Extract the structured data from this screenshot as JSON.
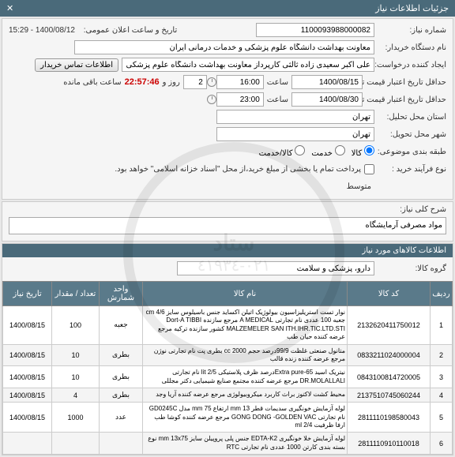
{
  "header": {
    "title": "جزئیات اطلاعات نیاز",
    "close": "✕"
  },
  "info": {
    "need_no_label": "شماره نیاز:",
    "need_no": "1100093988000082",
    "announce_label": "تاریخ و ساعت اعلان عمومی:",
    "announce_value": "1400/08/12 - 15:29",
    "buyer_label": "نام دستگاه خریدار:",
    "buyer_value": "معاونت بهداشت دانشگاه علوم پزشکی و خدمات درمانی ایران",
    "creator_label": "ایجاد کننده درخواست:",
    "creator_value": "علی اکبر سعیدی زاده ثالثی کارپرداز معاونت بهداشت دانشگاه علوم پزشکی و",
    "contact_btn": "اطلاعات تماس خریدار",
    "deadline_label": "حداقل تاریخ اعتبار قیمت تا تاریخ:",
    "deadline_date": "1400/08/15",
    "deadline_time_label": "ساعت",
    "deadline_time": "16:00",
    "day_label": "روز و",
    "day_value": "2",
    "countdown": "22:57:46",
    "remain_label": "ساعت باقی مانده",
    "valid_label": "حداقل تاریخ اعتبار قیمت تا تاریخ:",
    "valid_date": "1400/08/30",
    "valid_time_label": "ساعت",
    "valid_time": "23:00",
    "province_label": "استان محل تحلیل:",
    "province_value": "تهران",
    "city_label": "شهر محل تحویل:",
    "city_value": "تهران",
    "category_label": "طبقه بندی موضوعی:",
    "radio_goods": "کالا",
    "radio_service": "خدمت",
    "radio_both": "کالا/خدمت",
    "purchase_label": "نوع فرآیند خرید :",
    "purchase_chk": "پرداخت تمام یا بخشی از مبلغ خرید،از محل \"اسناد خزانه اسلامی\" خواهد بود.",
    "medium": "متوسط"
  },
  "need_desc": {
    "label": "شرح کلی نیاز:",
    "value": "مواد مصرفی آرمایشگاه"
  },
  "goods": {
    "header": "اطلاعات کالاهای مورد نیاز",
    "group_label": "گروه کالا:",
    "group_value": "دارو، پزشکی و سلامت"
  },
  "table": {
    "columns": [
      "ردیف",
      "کد کالا",
      "نام کالا",
      "واحد شمارش",
      "تعداد / مقدار",
      "تاریخ نیاز"
    ],
    "col_widths": [
      "28px",
      "105px",
      "auto",
      "55px",
      "60px",
      "62px"
    ],
    "rows": [
      {
        "idx": "1",
        "code": "2132620411750012",
        "name": "نوار تست استریلیزاسیون بیولوژیک اتیلن اکساید جنس باسیلوس سایز cm 4/6 جعبه 100 عددی نام تجارتی A MEDICAL مرجع سازنده Dort-A TIBBI MALZEMELER SAN ITH.IHR.TIC.LTD.STI کشور سازنده ترکیه مرجع عرضه کننده حیان طب",
        "unit": "جعبه",
        "qty": "100",
        "date": "1400/08/15"
      },
      {
        "idx": "2",
        "code": "0833211024000004",
        "name": "متانول صنعتی غلظت 99/9درصد حجم 2000 cc بطری پت نام تجارتی نوژن مرجع عرضه کننده زنده قالب",
        "unit": "بطری",
        "qty": "10",
        "date": "1400/08/15"
      },
      {
        "idx": "3",
        "code": "0843100814720005",
        "name": "نیتریک اسید Extra pure-65درصد ظرف پلاستیکی lit 2/5 نام تجارتی DR.MOLALLALI مرجع عرضه کننده مجتمع صنایع شیمیایی دکتر مجللی",
        "unit": "بطری",
        "qty": "10",
        "date": "1400/08/15"
      },
      {
        "idx": "4",
        "code": "2137510745060244",
        "name": "محیط کشت لاکتوز براث کاربرد میکروبیولوژی مرجع عرضه کننده آریا وجد",
        "unit": "بطری",
        "qty": "4",
        "date": "1400/08/15"
      },
      {
        "idx": "5",
        "code": "2811110198580043",
        "name": "لوله آزمایش خونگیری سدیمات قطر mm 13 ارتفاع mm 75 مدل GD0245C نام تجارتی GONG DONG -GOLDEN VAC مرجع عرضه کننده کوشا طب ارفا ظرفیت ml 2/4",
        "unit": "عدد",
        "qty": "1000",
        "date": "1400/08/15"
      },
      {
        "idx": "6",
        "code": "2811110910110018",
        "name": "لوله آزمایش خلا خونگیری EDTA-K2 جنس پلی پروپیلن سایز mm 13x75 نوع بسته بندی کارتن 1000 عددی نام تجارتی RTC",
        "unit": "",
        "qty": "",
        "date": ""
      }
    ]
  },
  "watermark": {
    "text": "ستاد",
    "num": "٠٢١-٤١٩٣٤"
  }
}
